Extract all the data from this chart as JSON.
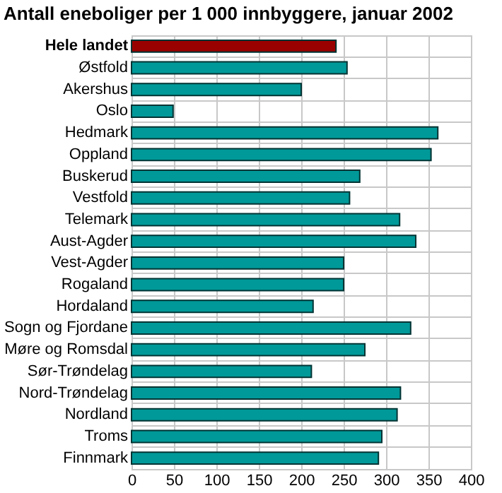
{
  "chart_data": {
    "type": "bar",
    "orientation": "horizontal",
    "title": "Antall eneboliger per 1 000 innbyggere, januar 2002",
    "categories": [
      "Hele landet",
      "Østfold",
      "Akershus",
      "Oslo",
      "Hedmark",
      "Oppland",
      "Buskerud",
      "Vestfold",
      "Telemark",
      "Aust-Agder",
      "Vest-Agder",
      "Rogaland",
      "Hordaland",
      "Sogn og Fjordane",
      "Møre og Romsdal",
      "Sør-Trøndelag",
      "Nord-Trøndelag",
      "Nordland",
      "Troms",
      "Finnmark"
    ],
    "values": [
      241,
      254,
      200,
      49,
      361,
      353,
      269,
      257,
      316,
      335,
      250,
      250,
      214,
      329,
      275,
      212,
      317,
      313,
      295,
      291
    ],
    "colors": [
      "#990000",
      "#009999",
      "#009999",
      "#009999",
      "#009999",
      "#009999",
      "#009999",
      "#009999",
      "#009999",
      "#009999",
      "#009999",
      "#009999",
      "#009999",
      "#009999",
      "#009999",
      "#009999",
      "#009999",
      "#009999",
      "#009999",
      "#009999"
    ],
    "xlim": [
      0,
      400
    ],
    "xticks": [
      0,
      50,
      100,
      150,
      200,
      250,
      300,
      350,
      400
    ],
    "grid": true
  }
}
